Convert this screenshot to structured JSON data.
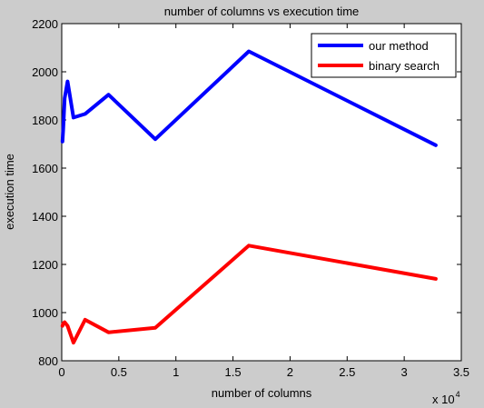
{
  "chart_data": {
    "type": "line",
    "title": "number of columns vs execution time",
    "xlabel": "number of columns",
    "ylabel": "execution time",
    "x_multiplier_label": "x 10",
    "x_multiplier_exponent": "4",
    "xlim": [
      0,
      35000
    ],
    "ylim": [
      800,
      2200
    ],
    "xticks": [
      0,
      5000,
      10000,
      15000,
      20000,
      25000,
      30000,
      35000
    ],
    "xtick_labels": [
      "0",
      "0.5",
      "1",
      "1.5",
      "2",
      "2.5",
      "3",
      "3.5"
    ],
    "yticks": [
      800,
      1000,
      1200,
      1400,
      1600,
      1800,
      2000,
      2200
    ],
    "ytick_labels": [
      "800",
      "1000",
      "1200",
      "1400",
      "1600",
      "1800",
      "2000",
      "2200"
    ],
    "grid": false,
    "legend_position": "top-right",
    "series": [
      {
        "name": "our method",
        "color": "#0000ff",
        "x": [
          64,
          128,
          256,
          512,
          1024,
          2048,
          4096,
          8192,
          16384,
          32768
        ],
        "y": [
          1710,
          1760,
          1890,
          1960,
          1810,
          1825,
          1905,
          1720,
          2085,
          1695
        ]
      },
      {
        "name": "binary search",
        "color": "#ff0000",
        "x": [
          64,
          128,
          256,
          512,
          1024,
          2048,
          4096,
          8192,
          16384,
          32768
        ],
        "y": [
          945,
          955,
          960,
          945,
          875,
          970,
          918,
          937,
          1278,
          1140
        ]
      }
    ]
  }
}
